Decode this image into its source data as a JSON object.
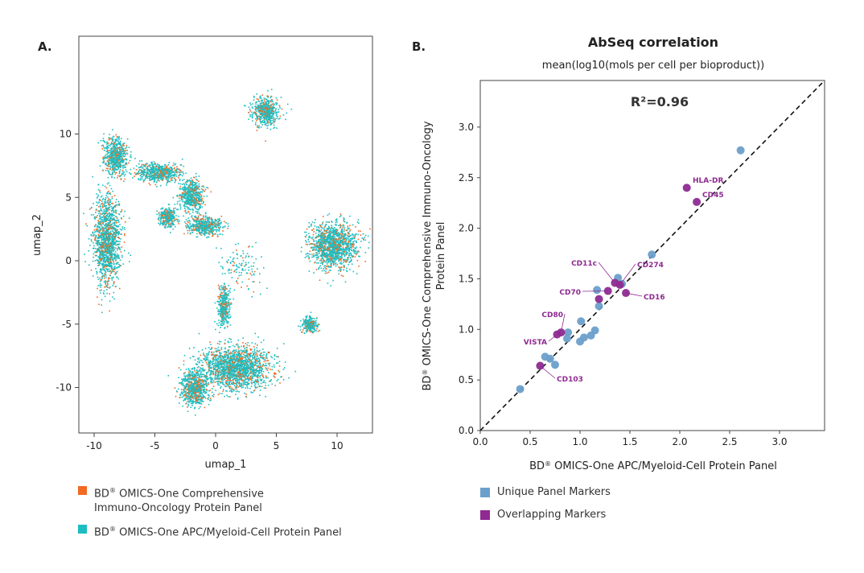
{
  "panels": {
    "a_label": "A.",
    "b_label": "B."
  },
  "colors": {
    "orange": "#f26a21",
    "teal": "#1bbdc1",
    "unique": "#6b9fcb",
    "overlap": "#8e2a91"
  },
  "chart_data": [
    {
      "type": "scatter",
      "xlabel": "umap_1",
      "ylabel": "umap_2",
      "xlim": [
        -12,
        13.5
      ],
      "ylim": [
        -13.5,
        14
      ],
      "xticks": [
        -10,
        -5,
        0,
        5,
        10
      ],
      "yticks": [
        -10,
        -5,
        0,
        5,
        10
      ],
      "grid": false,
      "legend_placement": "bottom",
      "series": [
        {
          "name_prefix": "BD",
          "name_reg": "®",
          "name": " OMICS-One Comprehensive",
          "name_line2": "Immuno-Oncology Protein Panel",
          "color": "#f26a21"
        },
        {
          "name_prefix": "BD",
          "name_reg": "®",
          "name": " OMICS-One APC/Myeloid-Cell Protein Panel",
          "color": "#1bbdc1"
        }
      ],
      "clusters_umap": [
        {
          "cx": 4.1,
          "cy": 11.8,
          "sx": 0.9,
          "sy": 0.9
        },
        {
          "cx": -8.3,
          "cy": 8.3,
          "sx": 0.8,
          "sy": 1.2
        },
        {
          "cx": -9.0,
          "cy": 1.6,
          "sx": 0.9,
          "sy": 2.8
        },
        {
          "cx": -4.8,
          "cy": 7.0,
          "sx": 1.5,
          "sy": 0.6
        },
        {
          "cx": -2.0,
          "cy": 5.2,
          "sx": 0.8,
          "sy": 1.0
        },
        {
          "cx": -1.0,
          "cy": 2.8,
          "sx": 1.2,
          "sy": 0.6
        },
        {
          "cx": -4.0,
          "cy": 3.5,
          "sx": 0.6,
          "sy": 0.6
        },
        {
          "cx": 9.6,
          "cy": 1.2,
          "sx": 1.6,
          "sy": 1.5
        },
        {
          "cx": 7.7,
          "cy": -5.0,
          "sx": 0.5,
          "sy": 0.5
        },
        {
          "cx": 0.6,
          "cy": -3.6,
          "sx": 0.4,
          "sy": 1.2
        },
        {
          "cx": 1.6,
          "cy": -8.4,
          "sx": 2.4,
          "sy": 1.4
        },
        {
          "cx": -1.8,
          "cy": -10.0,
          "sx": 0.9,
          "sy": 1.2
        },
        {
          "cx": 2.0,
          "cy": -0.5,
          "sx": 1.5,
          "sy": 1.5
        }
      ]
    },
    {
      "type": "scatter",
      "title": "AbSeq correlation",
      "subtitle": "mean(log10(mols per cell per bioproduct))",
      "annotation": "R²=0.96",
      "xlabel_prefix": "BD",
      "xlabel_reg": "®",
      "xlabel": " OMICS-One APC/Myeloid-Cell Protein Panel",
      "ylabel_prefix": "BD",
      "ylabel_reg": "®",
      "ylabel": " OMICS-One Comprehensive Immuno-Oncology",
      "ylabel_line2": "Protein Panel",
      "xlim": [
        0,
        3.45
      ],
      "ylim": [
        0,
        3.45
      ],
      "xticks": [
        "0.0",
        "0.5",
        "1.0",
        "1.5",
        "2.0",
        "2.5",
        "3.0"
      ],
      "yticks": [
        "0.0",
        "0.5",
        "1.0",
        "1.5",
        "2.0",
        "2.5",
        "3.0"
      ],
      "grid": false,
      "identity_line": true,
      "legend_placement": "bottom",
      "series": [
        {
          "name": "Unique Panel Markers",
          "color": "#6b9fcb",
          "points": [
            [
              0.4,
              0.41
            ],
            [
              2.61,
              2.77
            ],
            [
              1.72,
              1.74
            ],
            [
              1.38,
              1.51
            ],
            [
              1.17,
              1.39
            ],
            [
              1.19,
              1.23
            ],
            [
              1.01,
              1.08
            ],
            [
              0.88,
              0.97
            ],
            [
              0.87,
              0.91
            ],
            [
              1.0,
              0.88
            ],
            [
              1.04,
              0.92
            ],
            [
              1.11,
              0.94
            ],
            [
              1.15,
              0.99
            ],
            [
              0.65,
              0.73
            ],
            [
              0.7,
              0.71
            ],
            [
              0.75,
              0.65
            ],
            [
              1.42,
              1.45
            ]
          ]
        },
        {
          "name": "Overlapping Markers",
          "color": "#8e2a91",
          "points": [
            {
              "x": 2.07,
              "y": 2.4,
              "label": "HLA-DR"
            },
            {
              "x": 2.17,
              "y": 2.26,
              "label": "CD45"
            },
            {
              "x": 1.46,
              "y": 1.36,
              "label": "CD16"
            },
            {
              "x": 1.28,
              "y": 1.38,
              "label": "CD70"
            },
            {
              "x": 1.35,
              "y": 1.46,
              "label": "CD11c"
            },
            {
              "x": 1.4,
              "y": 1.44,
              "label": "CD274"
            },
            {
              "x": 1.19,
              "y": 1.3,
              "label": ""
            },
            {
              "x": 0.77,
              "y": 0.95,
              "label": "VISTA"
            },
            {
              "x": 0.81,
              "y": 0.97,
              "label": "CD80"
            },
            {
              "x": 0.6,
              "y": 0.64,
              "label": "CD103"
            }
          ]
        }
      ]
    }
  ]
}
